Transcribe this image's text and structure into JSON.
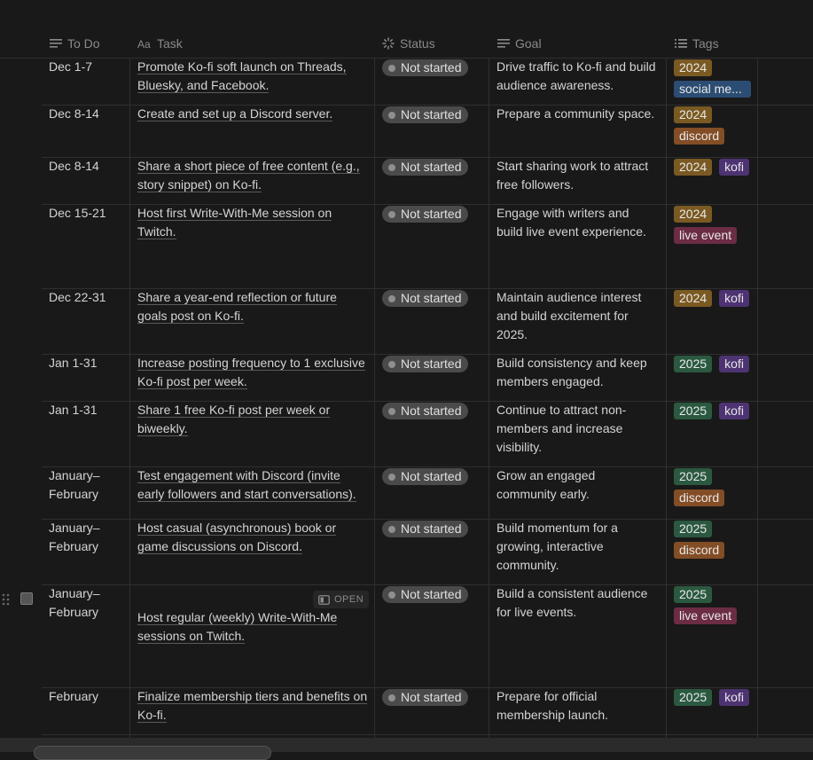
{
  "headers": {
    "todo": "To Do",
    "task": "Task",
    "status": "Status",
    "goal": "Goal",
    "tags": "Tags"
  },
  "open_label": "OPEN",
  "rows": [
    {
      "todo": "Dec 1-7",
      "task": "Promote Ko-fi soft launch on Threads, Bluesky, and Facebook.",
      "status": "Not started",
      "goal": "Drive traffic to Ko-fi and build audience awareness.",
      "tags": [
        "2024",
        "social me..."
      ]
    },
    {
      "todo": "Dec 8-14",
      "task": "Create and set up a Discord server.",
      "status": "Not started",
      "goal": "Prepare a community space.",
      "tags": [
        "2024",
        "discord"
      ]
    },
    {
      "todo": "Dec 8-14",
      "task": "Share a short piece of free content (e.g., story snippet) on Ko-fi.",
      "status": "Not started",
      "goal": "Start sharing work to attract free followers.",
      "tags": [
        "2024",
        "kofi"
      ]
    },
    {
      "todo": "Dec 15-21",
      "task": "Host first Write-With-Me session on Twitch.",
      "status": "Not started",
      "goal": "Engage with writers and build live event experience.",
      "tags": [
        "2024",
        "live event"
      ]
    },
    {
      "todo": "Dec 22-31",
      "task": "Share a year-end reflection or future goals post on Ko-fi.",
      "status": "Not started",
      "goal": "Maintain audience interest and build excitement for 2025.",
      "tags": [
        "2024",
        "kofi"
      ]
    },
    {
      "todo": "Jan 1-31",
      "task": "Increase posting frequency to 1 exclusive Ko-fi post per week.",
      "status": "Not started",
      "goal": "Build consistency and keep members engaged.",
      "tags": [
        "2025",
        "kofi"
      ]
    },
    {
      "todo": "Jan 1-31",
      "task": "Share 1 free Ko-fi post per week or biweekly.",
      "status": "Not started",
      "goal": "Continue to attract non-members and increase visibility.",
      "tags": [
        "2025",
        "kofi"
      ]
    },
    {
      "todo": "January–February",
      "task": "Test engagement with Discord (invite early followers and start conversations).",
      "status": "Not started",
      "goal": "Grow an engaged community early.",
      "tags": [
        "2025",
        "discord"
      ]
    },
    {
      "todo": "January–February",
      "task": "Host casual (asynchronous) book or game discussions on Discord.",
      "status": "Not started",
      "goal": "Build momentum for a growing, interactive community.",
      "tags": [
        "2025",
        "discord"
      ]
    },
    {
      "todo": "January–February",
      "task": "Host regular (weekly) Write-With-Me sessions on Twitch.",
      "status": "Not started",
      "goal": "Build a consistent audience for live events.",
      "tags": [
        "2025",
        "live event"
      ]
    },
    {
      "todo": "February",
      "task": "Finalize membership tiers and benefits on Ko-fi.",
      "status": "Not started",
      "goal": "Prepare for official membership launch.",
      "tags": [
        "2025",
        "kofi"
      ]
    }
  ]
}
